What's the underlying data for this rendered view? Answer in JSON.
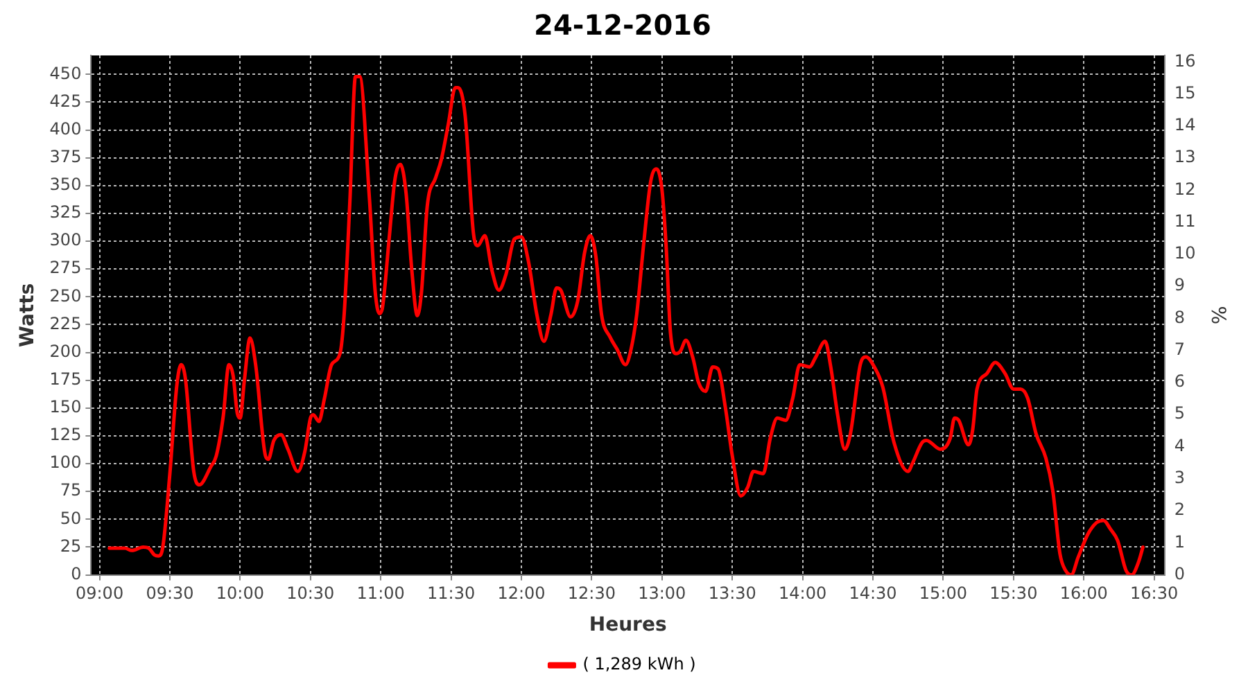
{
  "chart_data": {
    "type": "line",
    "title": "24-12-2016",
    "xlabel": "Heures",
    "ylabel": "Watts",
    "y2label": "%",
    "x": [
      9.07,
      9.18,
      9.23,
      9.31,
      9.35,
      9.39,
      9.42,
      9.45,
      9.5,
      9.55,
      9.58,
      9.61,
      9.67,
      9.71,
      9.79,
      9.83,
      9.88,
      9.92,
      9.95,
      9.98,
      10.0,
      10.03,
      10.07,
      10.11,
      10.18,
      10.2,
      10.24,
      10.29,
      10.34,
      10.41,
      10.46,
      10.5,
      10.52,
      10.56,
      10.6,
      10.65,
      10.71,
      10.74,
      10.78,
      10.82,
      10.85,
      10.92,
      10.96,
      10.99,
      11.01,
      11.06,
      11.1,
      11.14,
      11.18,
      11.22,
      11.26,
      11.29,
      11.33,
      11.39,
      11.43,
      11.48,
      11.53,
      11.55,
      11.6,
      11.66,
      11.69,
      11.74,
      11.79,
      11.84,
      11.89,
      11.95,
      12.0,
      12.05,
      12.11,
      12.16,
      12.21,
      12.25,
      12.28,
      12.35,
      12.4,
      12.45,
      12.49,
      12.53,
      12.57,
      12.63,
      12.68,
      12.74,
      12.78,
      12.82,
      12.87,
      12.92,
      12.96,
      13.0,
      13.03,
      13.06,
      13.1,
      13.13,
      13.17,
      13.22,
      13.26,
      13.31,
      13.36,
      13.4,
      13.45,
      13.5,
      13.56,
      13.61,
      13.65,
      13.72,
      13.77,
      13.82,
      13.88,
      13.93,
      13.98,
      14.05,
      14.09,
      14.16,
      14.2,
      14.25,
      14.3,
      14.34,
      14.41,
      14.45,
      14.51,
      14.57,
      14.65,
      14.75,
      14.78,
      14.85,
      14.88,
      14.98,
      15.05,
      15.08,
      15.11,
      15.18,
      15.21,
      15.24,
      15.31,
      15.37,
      15.44,
      15.5,
      15.55,
      15.6,
      15.66,
      15.73,
      15.78,
      15.83,
      15.87,
      15.91,
      15.96,
      16.03,
      16.09,
      16.14,
      16.19,
      16.24,
      16.3,
      16.34,
      16.39,
      16.42
    ],
    "series": [
      {
        "name": "( 1,289 kWh )",
        "color": "#ff0000",
        "values": [
          24,
          24,
          22,
          25,
          24,
          18,
          17,
          25,
          91,
          171,
          189,
          177,
          93,
          81,
          97,
          107,
          143,
          189,
          179,
          145,
          141,
          175,
          213,
          189,
          107,
          104,
          121,
          126,
          113,
          93,
          111,
          141,
          144,
          138,
          159,
          189,
          199,
          235,
          335,
          448,
          448,
          337,
          255,
          235,
          239,
          303,
          355,
          369,
          343,
          275,
          233,
          255,
          331,
          357,
          373,
          405,
          438,
          438,
          413,
          306,
          296,
          305,
          274,
          256,
          270,
          302,
          304,
          282,
          234,
          210,
          234,
          258,
          256,
          232,
          246,
          290,
          305,
          286,
          234,
          214,
          203,
          189,
          203,
          234,
          298,
          354,
          365,
          346,
          294,
          218,
          199,
          201,
          211,
          195,
          173,
          165,
          187,
          185,
          151,
          107,
          71,
          79,
          93,
          91,
          123,
          141,
          139,
          159,
          189,
          187,
          195,
          210,
          187,
          143,
          113,
          127,
          189,
          196,
          187,
          169,
          119,
          93,
          100,
          119,
          121,
          113,
          123,
          141,
          139,
          117,
          131,
          167,
          181,
          191,
          181,
          167,
          167,
          159,
          127,
          105,
          75,
          19,
          4,
          0,
          16,
          37,
          47,
          49,
          41,
          31,
          4,
          0,
          12,
          25
        ]
      }
    ],
    "xlim": [
      8.94,
      16.575
    ],
    "xticks": [
      {
        "value": 9,
        "label": "09:00"
      },
      {
        "value": 9.5,
        "label": "09:30"
      },
      {
        "value": 10,
        "label": "10:00"
      },
      {
        "value": 10.5,
        "label": "10:30"
      },
      {
        "value": 11,
        "label": "11:00"
      },
      {
        "value": 11.5,
        "label": "11:30"
      },
      {
        "value": 12,
        "label": "12:00"
      },
      {
        "value": 12.5,
        "label": "12:30"
      },
      {
        "value": 13,
        "label": "13:00"
      },
      {
        "value": 13.5,
        "label": "13:30"
      },
      {
        "value": 14,
        "label": "14:00"
      },
      {
        "value": 14.5,
        "label": "14:30"
      },
      {
        "value": 15,
        "label": "15:00"
      },
      {
        "value": 15.5,
        "label": "15:30"
      },
      {
        "value": 16,
        "label": "16:00"
      },
      {
        "value": 16.5,
        "label": "16:30"
      }
    ],
    "ylim": [
      0,
      467
    ],
    "yticks": [
      0,
      25,
      50,
      75,
      100,
      125,
      150,
      175,
      200,
      225,
      250,
      275,
      300,
      325,
      350,
      375,
      400,
      425,
      450
    ],
    "y2lim": [
      0,
      16.2
    ],
    "y2ticks": [
      0,
      1,
      2,
      3,
      4,
      5,
      6,
      7,
      8,
      9,
      10,
      11,
      12,
      13,
      14,
      15,
      16
    ],
    "grid": true,
    "legend": "bottom",
    "marker": "none",
    "line_style": "solid"
  }
}
